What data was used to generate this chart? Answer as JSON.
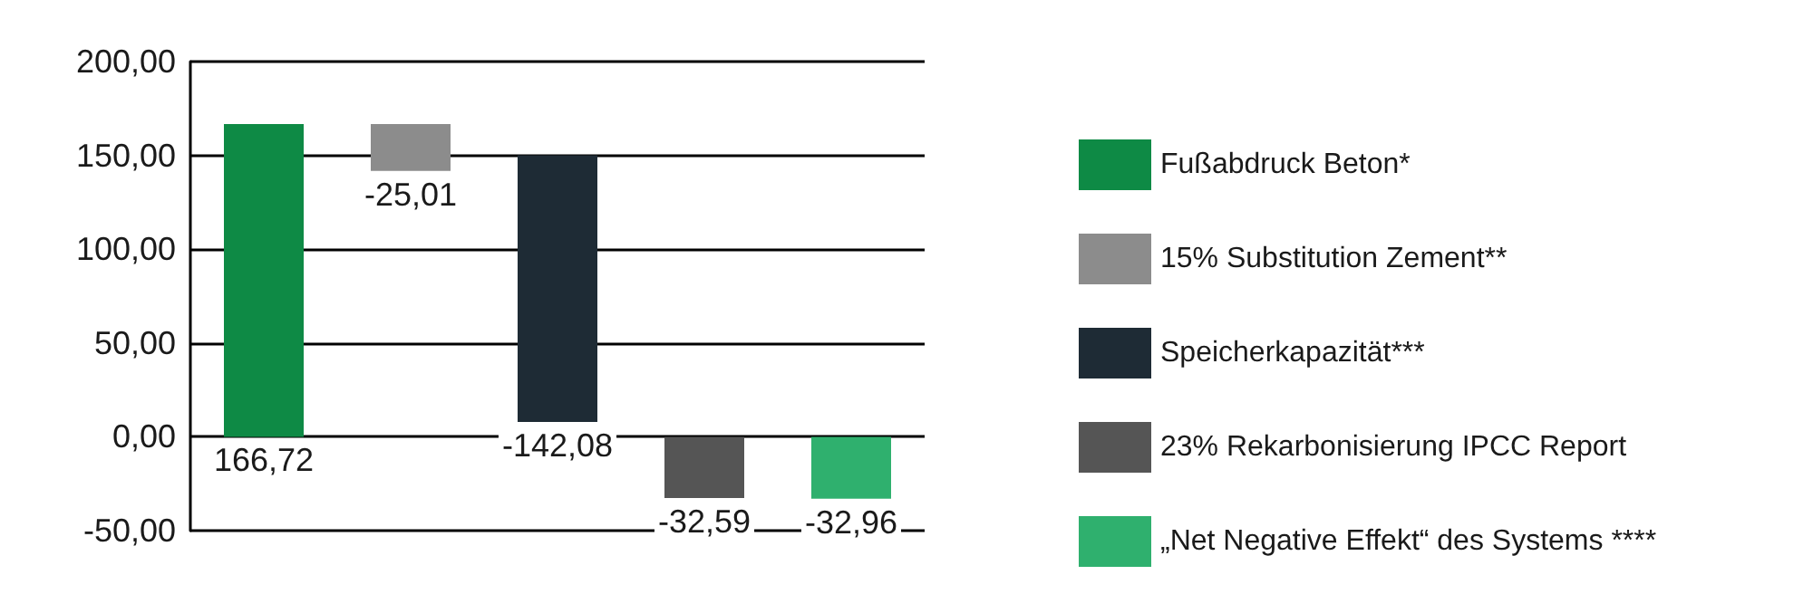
{
  "chart_data": {
    "type": "bar",
    "categories": [
      null,
      null,
      null,
      null,
      null
    ],
    "series": [
      {
        "name": "Fußabdruck Beton*",
        "color": "#0e8a45",
        "values": [
          166.72,
          null,
          null,
          null,
          null
        ],
        "base": [
          0,
          null,
          null,
          null,
          null
        ],
        "value_labels": [
          "166,72",
          null,
          null,
          null,
          null
        ]
      },
      {
        "name": "15% Substitution Zement**",
        "color": "#8c8c8c",
        "values": [
          null,
          -25.01,
          null,
          null,
          null
        ],
        "base": [
          null,
          166.72,
          null,
          null,
          null
        ],
        "value_labels": [
          null,
          "-25,01",
          null,
          null,
          null
        ]
      },
      {
        "name": "Speicherkapazität***",
        "color": "#1e2b35",
        "values": [
          null,
          null,
          -142.08,
          null,
          null
        ],
        "base": [
          null,
          null,
          150,
          null,
          null
        ],
        "value_labels": [
          null,
          null,
          "-142,08",
          null,
          null
        ]
      },
      {
        "name": "23% Rekarbonisierung IPCC Report",
        "color": "#555555",
        "values": [
          null,
          null,
          null,
          -32.59,
          null
        ],
        "base": [
          null,
          null,
          null,
          0,
          null
        ],
        "value_labels": [
          null,
          null,
          null,
          "-32,59",
          null
        ]
      },
      {
        "name": "„Net Negative Effekt“ des Systems ****",
        "color": "#2fb06e",
        "values": [
          null,
          null,
          null,
          null,
          -32.96
        ],
        "base": [
          null,
          null,
          null,
          null,
          0
        ],
        "value_labels": [
          null,
          null,
          null,
          null,
          "-32,96"
        ]
      }
    ],
    "ylim": [
      -50,
      200
    ],
    "yticks": [
      {
        "value": -50,
        "label": "-50,00"
      },
      {
        "value": 0,
        "label": "0,00"
      },
      {
        "value": 50,
        "label": "50,00"
      },
      {
        "value": 100,
        "label": "100,00"
      },
      {
        "value": 150,
        "label": "150,00"
      },
      {
        "value": 200,
        "label": "200,00"
      }
    ],
    "grid": "y",
    "legend": "right",
    "tick_labels": "y"
  }
}
